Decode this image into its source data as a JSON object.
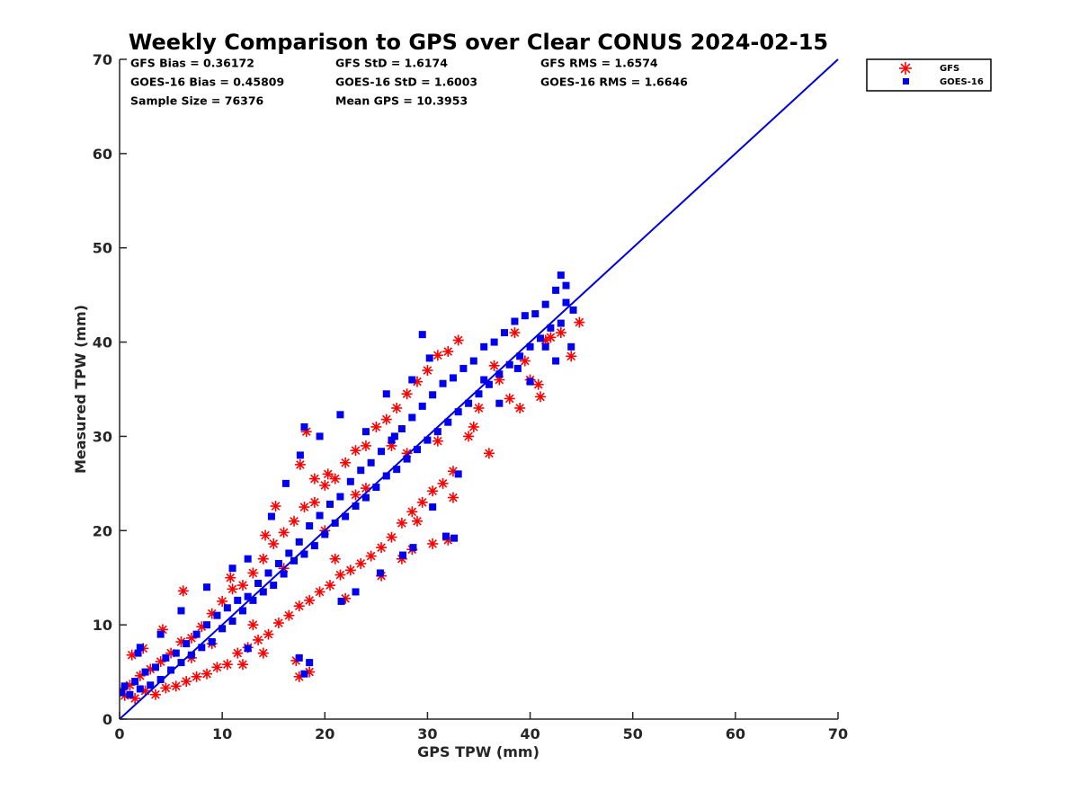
{
  "chart_data": {
    "type": "scatter",
    "title": "Weekly Comparison to GPS over Clear CONUS 2024-02-15",
    "xlabel": "GPS TPW (mm)",
    "ylabel": "Measured TPW (mm)",
    "xlim": [
      0,
      70
    ],
    "ylim": [
      0,
      70
    ],
    "xticks": [
      "0",
      "10",
      "20",
      "30",
      "40",
      "50",
      "60",
      "70"
    ],
    "yticks": [
      "0",
      "10",
      "20",
      "30",
      "40",
      "50",
      "60",
      "70"
    ],
    "grid": false,
    "legend_position": "outside-top-right",
    "stats": [
      [
        "GFS Bias = 0.36172",
        "GFS StD = 1.6174",
        "GFS RMS = 1.6574"
      ],
      [
        "GOES-16 Bias = 0.45809",
        "GOES-16 StD = 1.6003",
        "GOES-16 RMS = 1.6646"
      ],
      [
        "Sample Size = 76376",
        "Mean GPS = 10.3953"
      ]
    ],
    "reference_line": {
      "x": [
        0,
        70
      ],
      "y": [
        0,
        70
      ],
      "color": "#0000dd"
    },
    "series": [
      {
        "name": "GFS",
        "marker": "asterisk",
        "color": "#ff0000",
        "points": [
          [
            0.2,
            3.1
          ],
          [
            0.5,
            2.5
          ],
          [
            1,
            3.6
          ],
          [
            1.5,
            2.2
          ],
          [
            2,
            4.6
          ],
          [
            2.5,
            3.0
          ],
          [
            3,
            5.3
          ],
          [
            3.5,
            2.6
          ],
          [
            4,
            6.1
          ],
          [
            4.5,
            3.3
          ],
          [
            5,
            7.0
          ],
          [
            5.5,
            3.5
          ],
          [
            6,
            8.2
          ],
          [
            6.5,
            4.0
          ],
          [
            7,
            8.6
          ],
          [
            7.5,
            4.5
          ],
          [
            8,
            9.8
          ],
          [
            8.5,
            4.8
          ],
          [
            9,
            11.2
          ],
          [
            9.5,
            5.5
          ],
          [
            10,
            12.5
          ],
          [
            10.5,
            5.8
          ],
          [
            11,
            13.8
          ],
          [
            11.5,
            7.0
          ],
          [
            12,
            14.2
          ],
          [
            12.5,
            7.6
          ],
          [
            13,
            15.5
          ],
          [
            13.5,
            8.4
          ],
          [
            14,
            17.0
          ],
          [
            14.5,
            9.0
          ],
          [
            15,
            18.6
          ],
          [
            15.5,
            10.2
          ],
          [
            16,
            19.8
          ],
          [
            16.5,
            11.0
          ],
          [
            17,
            21.0
          ],
          [
            17.5,
            12.0
          ],
          [
            18,
            22.5
          ],
          [
            18.5,
            12.6
          ],
          [
            19,
            23.0
          ],
          [
            19.5,
            13.5
          ],
          [
            20,
            24.8
          ],
          [
            20.5,
            14.2
          ],
          [
            21,
            25.5
          ],
          [
            21.5,
            15.3
          ],
          [
            22,
            27.2
          ],
          [
            22.5,
            15.8
          ],
          [
            23,
            28.5
          ],
          [
            23.5,
            16.5
          ],
          [
            24,
            29.0
          ],
          [
            24.5,
            17.3
          ],
          [
            25,
            31.0
          ],
          [
            25.5,
            18.2
          ],
          [
            26,
            31.8
          ],
          [
            26.5,
            19.3
          ],
          [
            27,
            33.0
          ],
          [
            27.5,
            20.8
          ],
          [
            28,
            34.5
          ],
          [
            28.5,
            22.0
          ],
          [
            29,
            35.8
          ],
          [
            29.5,
            23.0
          ],
          [
            30,
            37.0
          ],
          [
            30.5,
            24.2
          ],
          [
            31,
            38.6
          ],
          [
            31.5,
            25.0
          ],
          [
            32,
            39.0
          ],
          [
            32.5,
            26.3
          ],
          [
            33,
            40.2
          ],
          [
            34,
            30.0
          ],
          [
            35,
            33.0
          ],
          [
            36,
            28.2
          ],
          [
            37,
            36.0
          ],
          [
            38,
            34.0
          ],
          [
            39,
            33.0
          ],
          [
            40,
            36.0
          ],
          [
            41,
            34.2
          ],
          [
            42,
            40.5
          ],
          [
            43,
            41.0
          ],
          [
            44,
            38.5
          ],
          [
            44.8,
            42.1
          ],
          [
            41.5,
            40.2
          ],
          [
            1.2,
            6.8
          ],
          [
            2.3,
            7.5
          ],
          [
            4.2,
            9.5
          ],
          [
            6.2,
            13.6
          ],
          [
            10.8,
            15.0
          ],
          [
            14.2,
            19.5
          ],
          [
            15.2,
            22.6
          ],
          [
            17.6,
            27.0
          ],
          [
            18.2,
            30.5
          ],
          [
            17.5,
            4.5
          ],
          [
            18.5,
            5.0
          ],
          [
            17.2,
            6.2
          ],
          [
            12.0,
            5.8
          ],
          [
            14.0,
            7.0
          ],
          [
            22.0,
            12.8
          ],
          [
            27.5,
            17.0
          ],
          [
            28.5,
            18.0
          ],
          [
            30.5,
            18.6
          ],
          [
            32.0,
            19.0
          ],
          [
            25.5,
            15.2
          ],
          [
            19.0,
            25.5
          ],
          [
            20.3,
            26.0
          ],
          [
            23.0,
            23.8
          ],
          [
            26.5,
            29.0
          ],
          [
            31.0,
            29.5
          ],
          [
            34.5,
            31.0
          ],
          [
            36.5,
            37.5
          ],
          [
            38.5,
            41.0
          ],
          [
            39.5,
            38.0
          ],
          [
            40.8,
            35.5
          ],
          [
            16.0,
            16.0
          ],
          [
            20.0,
            20.0
          ],
          [
            24.0,
            24.5
          ],
          [
            28.0,
            28.2
          ],
          [
            32.5,
            23.5
          ],
          [
            29.0,
            21.0
          ],
          [
            21.0,
            17.0
          ],
          [
            13.0,
            10.0
          ],
          [
            9.0,
            8.0
          ],
          [
            7.0,
            6.5
          ]
        ]
      },
      {
        "name": "GOES-16",
        "marker": "square",
        "color": "#0000ee",
        "points": [
          [
            0.2,
            2.8
          ],
          [
            0.5,
            3.5
          ],
          [
            1,
            2.6
          ],
          [
            1.5,
            4.0
          ],
          [
            2,
            3.2
          ],
          [
            2.5,
            5.0
          ],
          [
            3,
            3.6
          ],
          [
            3.5,
            5.5
          ],
          [
            4,
            4.2
          ],
          [
            4.5,
            6.5
          ],
          [
            5,
            5.2
          ],
          [
            5.5,
            7.0
          ],
          [
            6,
            6.0
          ],
          [
            6.5,
            8.0
          ],
          [
            7,
            6.8
          ],
          [
            7.5,
            9.0
          ],
          [
            8,
            7.6
          ],
          [
            8.5,
            10.0
          ],
          [
            9,
            8.2
          ],
          [
            9.5,
            11.0
          ],
          [
            10,
            9.6
          ],
          [
            10.5,
            11.8
          ],
          [
            11,
            10.4
          ],
          [
            11.5,
            12.6
          ],
          [
            12,
            11.5
          ],
          [
            12.5,
            13.0
          ],
          [
            13,
            12.6
          ],
          [
            13.5,
            14.4
          ],
          [
            14,
            13.5
          ],
          [
            14.5,
            15.5
          ],
          [
            15,
            14.2
          ],
          [
            15.5,
            16.5
          ],
          [
            16,
            15.4
          ],
          [
            16.5,
            17.6
          ],
          [
            17,
            16.8
          ],
          [
            17.5,
            18.8
          ],
          [
            18,
            17.5
          ],
          [
            18.5,
            20.5
          ],
          [
            19,
            18.4
          ],
          [
            19.5,
            21.6
          ],
          [
            20,
            19.6
          ],
          [
            20.5,
            22.8
          ],
          [
            21,
            20.8
          ],
          [
            21.5,
            23.6
          ],
          [
            22,
            21.5
          ],
          [
            22.5,
            25.2
          ],
          [
            23,
            22.6
          ],
          [
            23.5,
            26.4
          ],
          [
            24,
            23.5
          ],
          [
            24.5,
            27.2
          ],
          [
            25,
            24.6
          ],
          [
            25.5,
            28.4
          ],
          [
            26,
            25.8
          ],
          [
            26.5,
            29.6
          ],
          [
            27,
            26.5
          ],
          [
            27.5,
            30.8
          ],
          [
            28,
            27.6
          ],
          [
            28.5,
            32.0
          ],
          [
            29,
            28.6
          ],
          [
            29.5,
            33.2
          ],
          [
            30,
            29.6
          ],
          [
            30.5,
            34.4
          ],
          [
            31,
            30.5
          ],
          [
            31.5,
            35.6
          ],
          [
            32,
            31.5
          ],
          [
            32.5,
            36.2
          ],
          [
            33,
            32.6
          ],
          [
            33.5,
            37.2
          ],
          [
            34,
            33.5
          ],
          [
            34.5,
            38.0
          ],
          [
            35,
            34.5
          ],
          [
            35.5,
            39.5
          ],
          [
            36,
            35.5
          ],
          [
            36.5,
            40.0
          ],
          [
            37,
            36.6
          ],
          [
            37.5,
            41.0
          ],
          [
            38,
            37.6
          ],
          [
            38.5,
            42.2
          ],
          [
            39,
            38.5
          ],
          [
            39.5,
            42.8
          ],
          [
            40,
            39.5
          ],
          [
            40.5,
            43.0
          ],
          [
            41,
            40.4
          ],
          [
            41.5,
            44.0
          ],
          [
            42,
            41.5
          ],
          [
            42.5,
            45.5
          ],
          [
            43,
            42.0
          ],
          [
            43.5,
            46.0
          ],
          [
            43.5,
            44.2
          ],
          [
            43,
            47.1
          ],
          [
            41.5,
            39.5
          ],
          [
            42.5,
            38.0
          ],
          [
            44.2,
            43.4
          ],
          [
            44.0,
            39.5
          ],
          [
            29.5,
            40.8
          ],
          [
            24.0,
            30.5
          ],
          [
            26.0,
            34.5
          ],
          [
            28.5,
            36.0
          ],
          [
            18.0,
            31.0
          ],
          [
            17.6,
            28.0
          ],
          [
            19.5,
            30.0
          ],
          [
            21.5,
            32.3
          ],
          [
            14.8,
            21.5
          ],
          [
            16.2,
            25.0
          ],
          [
            12.5,
            17.0
          ],
          [
            11.0,
            16.0
          ],
          [
            8.5,
            14.0
          ],
          [
            6.0,
            11.5
          ],
          [
            4.0,
            9.0
          ],
          [
            2.0,
            7.6
          ],
          [
            1.8,
            7.0
          ],
          [
            17.5,
            6.5
          ],
          [
            18.5,
            6.0
          ],
          [
            18.0,
            4.8
          ],
          [
            12.5,
            7.5
          ],
          [
            27.6,
            17.4
          ],
          [
            28.6,
            18.2
          ],
          [
            31.8,
            19.4
          ],
          [
            32.6,
            19.2
          ],
          [
            25.4,
            15.5
          ],
          [
            23.0,
            13.5
          ],
          [
            21.6,
            12.5
          ],
          [
            26.8,
            30.0
          ],
          [
            30.2,
            38.3
          ],
          [
            35.5,
            36.0
          ],
          [
            37.0,
            33.5
          ],
          [
            38.8,
            37.2
          ],
          [
            40.0,
            35.8
          ],
          [
            33.0,
            26.0
          ],
          [
            30.5,
            22.5
          ]
        ]
      }
    ]
  }
}
